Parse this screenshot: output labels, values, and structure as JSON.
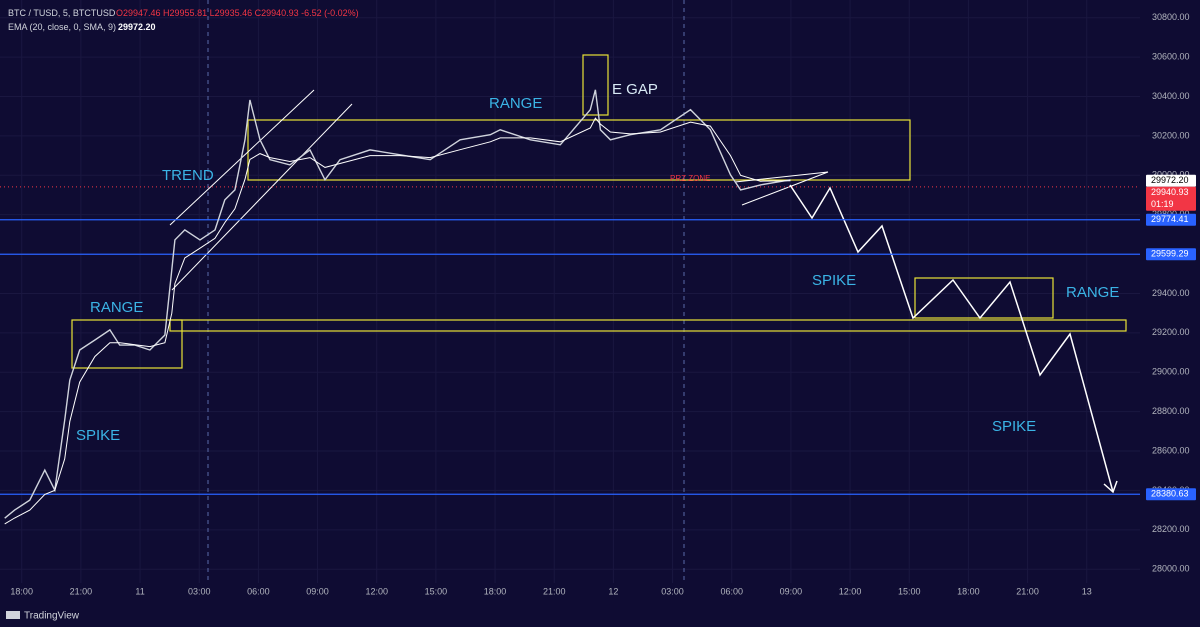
{
  "header": {
    "symbol": "BTC / TUSD, 5, BTCTUSD",
    "ohlc": "O29947.46 H29955.81 L29935.46 C29940.93 -6.52 (-0.02%)",
    "indicator": "EMA (20, close, 0, SMA, 9)",
    "indicator_value": "29972.20"
  },
  "chart_data": {
    "type": "line",
    "x": [
      -0.86,
      -0.36,
      0.41,
      1.17,
      1.68,
      2.18,
      2.44,
      2.94,
      3.71,
      4.47,
      4.97,
      5.74,
      6.5,
      7.26,
      7.61,
      7.77,
      8.27,
      9.04,
      9.8,
      10.3,
      10.81,
      11.32,
      11.57,
      12.08,
      12.59,
      13.6,
      14.62,
      15.38,
      16.14,
      17.66,
      19.19,
      20.71,
      22.23,
      23.76,
      24.26,
      25.79,
      27.31,
      28.83,
      29.09,
      29.34,
      29.85,
      30.86,
      32.39,
      33.91,
      34.92,
      35.94,
      36.45,
      37.46,
      38.98
    ],
    "series": [
      {
        "color": "#cfd3dc",
        "values": [
          28259,
          28300,
          28351,
          28503,
          28401,
          28757,
          28960,
          29113,
          29164,
          29215,
          29138,
          29138,
          29113,
          29189,
          29520,
          29672,
          29723,
          29672,
          29723,
          29875,
          29926,
          30180,
          30383,
          30180,
          30079,
          30053,
          30129,
          29977,
          30079,
          30129,
          30104,
          30079,
          30180,
          30206,
          30231,
          30180,
          30155,
          30333,
          30434,
          30231,
          30180,
          30206,
          30231,
          30333,
          30231,
          30002,
          29926,
          29951,
          29977
        ]
      },
      {
        "color": "#ffffff",
        "values": [
          28230,
          28260,
          28300,
          28380,
          28400,
          28560,
          28750,
          28950,
          29080,
          29150,
          29150,
          29140,
          29130,
          29150,
          29300,
          29450,
          29580,
          29630,
          29680,
          29760,
          29830,
          29980,
          30080,
          30110,
          30090,
          30070,
          30090,
          30040,
          30060,
          30100,
          30100,
          30090,
          30130,
          30170,
          30190,
          30190,
          30170,
          30240,
          30290,
          30260,
          30220,
          30210,
          30220,
          30270,
          30250,
          30100,
          30000,
          29970,
          29972
        ]
      }
    ],
    "xlim": [
      -1.1,
      56.7
    ],
    "xticks": [
      {
        "value": 0,
        "label": "18:00"
      },
      {
        "value": 3,
        "label": "21:00"
      },
      {
        "value": 6,
        "label": "11"
      },
      {
        "value": 9,
        "label": "03:00"
      },
      {
        "value": 12,
        "label": "06:00"
      },
      {
        "value": 15,
        "label": "09:00"
      },
      {
        "value": 18,
        "label": "12:00"
      },
      {
        "value": 21,
        "label": "15:00"
      },
      {
        "value": 24,
        "label": "18:00"
      },
      {
        "value": 27,
        "label": "21:00"
      },
      {
        "value": 30,
        "label": "12"
      },
      {
        "value": 33,
        "label": "03:00"
      },
      {
        "value": 36,
        "label": "06:00"
      },
      {
        "value": 39,
        "label": "09:00"
      },
      {
        "value": 42,
        "label": "12:00"
      },
      {
        "value": 45,
        "label": "15:00"
      },
      {
        "value": 48,
        "label": "18:00"
      },
      {
        "value": 51,
        "label": "21:00"
      },
      {
        "value": 54,
        "label": "13"
      }
    ],
    "ylim": [
      27930,
      30890
    ],
    "yticks": [
      {
        "value": 28000,
        "label": "28000.00"
      },
      {
        "value": 28200,
        "label": "28200.00"
      },
      {
        "value": 28400,
        "label": "28400.00"
      },
      {
        "value": 28600,
        "label": "28600.00"
      },
      {
        "value": 28800,
        "label": "28800.00"
      },
      {
        "value": 29000,
        "label": "29000.00"
      },
      {
        "value": 29200,
        "label": "29200.00"
      },
      {
        "value": 29400,
        "label": "29400.00"
      },
      {
        "value": 29600,
        "label": "29600.00"
      },
      {
        "value": 29800,
        "label": "29800.00"
      },
      {
        "value": 30000,
        "label": "30000.00"
      },
      {
        "value": 30200,
        "label": "30200.00"
      },
      {
        "value": 30400,
        "label": "30400.00"
      },
      {
        "value": 30600,
        "label": "30600.00"
      },
      {
        "value": 30800,
        "label": "30800.00"
      }
    ],
    "levels": [
      29774.41,
      29599.29,
      28380.63
    ],
    "level_color": "#2962ff",
    "last_price": 29940.93,
    "countdown": "01:19",
    "ema_last": {
      "value": 29972.2,
      "label": "29972.20"
    },
    "annotations": [
      "TREND",
      "RANGE",
      "SPIKE",
      "RANGE",
      "E GAP",
      "PRZ ZONE",
      "SPIKE",
      "RANGE",
      "SPIKE"
    ]
  },
  "footer": {
    "brand": "TradingView"
  }
}
